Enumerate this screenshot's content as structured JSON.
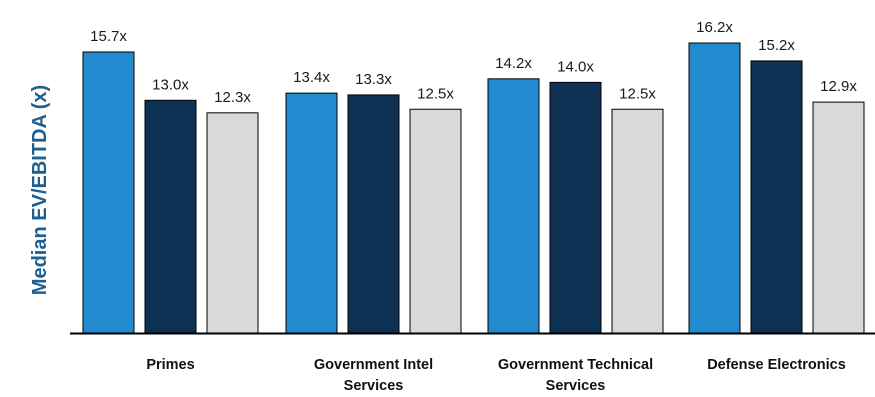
{
  "chart_data": {
    "type": "bar",
    "ylabel": "Median EV/EBITDA (x)",
    "ylim": [
      0,
      18
    ],
    "grid": false,
    "legend": "none",
    "categories": [
      [
        "Primes"
      ],
      [
        "Government Intel",
        "Services"
      ],
      [
        "Government Technical",
        "Services"
      ],
      [
        "Defense Electronics"
      ]
    ],
    "series": [
      {
        "values": [
          15.7,
          13.4,
          14.2,
          16.2
        ],
        "labels": [
          "15.7x",
          "13.4x",
          "14.2x",
          "16.2x"
        ],
        "color": "#228BD0"
      },
      {
        "values": [
          13.0,
          13.3,
          14.0,
          15.2
        ],
        "labels": [
          "13.0x",
          "13.3x",
          "14.0x",
          "15.2x"
        ],
        "color": "#0D3152"
      },
      {
        "values": [
          12.3,
          12.5,
          12.5,
          12.9
        ],
        "labels": [
          "12.3x",
          "12.5x",
          "12.5x",
          "12.9x"
        ],
        "color": "#D9D9D9"
      }
    ],
    "colors": {
      "axis": "#000000",
      "ylabel": "#1F5F8F"
    }
  }
}
